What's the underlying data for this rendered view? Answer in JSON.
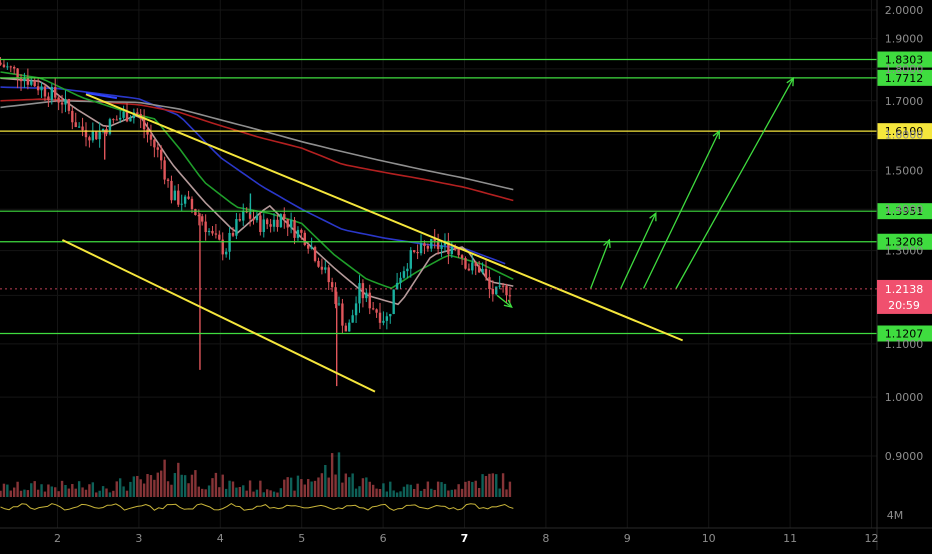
{
  "chart_data": {
    "type": "candlestick",
    "title": "",
    "xlabel": "",
    "ylabel": "",
    "x_ticks": [
      "2",
      "3",
      "4",
      "5",
      "6",
      "7",
      "8",
      "9",
      "10",
      "11",
      "12"
    ],
    "x_range": [
      1.29,
      12.1
    ],
    "y_scale": "log",
    "ylim": [
      0.865,
      2.045
    ],
    "y_ticks": [
      "2.0000",
      "1.9000",
      "1.8000",
      "1.7000",
      "1.6000",
      "1.5000",
      "1.4000",
      "1.3000",
      "1.2000",
      "1.1000",
      "1.0000",
      "0.9000"
    ],
    "y_tick_values": [
      2.0,
      1.9,
      1.8,
      1.7,
      1.6,
      1.5,
      1.4,
      1.3,
      1.2,
      1.1,
      1.0,
      0.9
    ],
    "levels": [
      {
        "label": "1.8303",
        "value": 1.8303,
        "color": "#3fdc3f"
      },
      {
        "label": "1.7712",
        "value": 1.7712,
        "color": "#3fdc3f"
      },
      {
        "label": "1.6100",
        "value": 1.61,
        "color": "#f5e63c"
      },
      {
        "label": "1.3951",
        "value": 1.3951,
        "color": "#3fdc3f"
      },
      {
        "label": "1.3208",
        "value": 1.3208,
        "color": "#3fdc3f"
      },
      {
        "label": "1.1207",
        "value": 1.1207,
        "color": "#3fdc3f"
      }
    ],
    "current_price": {
      "label": "1.2138",
      "value": 1.2138,
      "countdown": "20:59",
      "color": "#f0506e"
    },
    "volume_axis_label": "4M",
    "trendlines": [
      {
        "from": [
          2.35,
          1.72
        ],
        "to": [
          9.68,
          1.107
        ],
        "color": "#f5e63c"
      },
      {
        "from": [
          2.06,
          1.325
        ],
        "to": [
          5.9,
          1.01
        ],
        "color": "#f5e63c"
      },
      {
        "from": [
          2.35,
          1.724
        ],
        "to": [
          2.73,
          1.708
        ],
        "color": "#2f44ff"
      }
    ],
    "arrows": [
      {
        "from": [
          7.4,
          1.2
        ],
        "to": [
          7.58,
          1.175
        ]
      },
      {
        "from": [
          8.55,
          1.215
        ],
        "to": [
          8.78,
          1.325
        ]
      },
      {
        "from": [
          8.92,
          1.215
        ],
        "to": [
          9.35,
          1.39
        ]
      },
      {
        "from": [
          9.2,
          1.215
        ],
        "to": [
          10.13,
          1.61
        ]
      },
      {
        "from": [
          9.6,
          1.215
        ],
        "to": [
          11.04,
          1.77
        ]
      }
    ],
    "moving_averages": [
      {
        "color": "#2a37c9",
        "points": [
          [
            1.3,
            1.742
          ],
          [
            2.0,
            1.738
          ],
          [
            2.5,
            1.722
          ],
          [
            3.0,
            1.706
          ],
          [
            3.5,
            1.655
          ],
          [
            4.0,
            1.536
          ],
          [
            4.5,
            1.46
          ],
          [
            5.0,
            1.4
          ],
          [
            5.5,
            1.35
          ],
          [
            6.0,
            1.33
          ],
          [
            6.5,
            1.315
          ],
          [
            7.0,
            1.305
          ],
          [
            7.5,
            1.27
          ]
        ]
      },
      {
        "color": "#b32020",
        "points": [
          [
            1.3,
            1.7
          ],
          [
            1.8,
            1.705
          ],
          [
            2.3,
            1.7
          ],
          [
            3.0,
            1.688
          ],
          [
            3.5,
            1.665
          ],
          [
            4.0,
            1.626
          ],
          [
            4.5,
            1.591
          ],
          [
            5.0,
            1.562
          ],
          [
            5.5,
            1.517
          ],
          [
            6.0,
            1.496
          ],
          [
            6.5,
            1.477
          ],
          [
            7.0,
            1.456
          ],
          [
            7.6,
            1.422
          ]
        ]
      },
      {
        "color": "#8f8f8f",
        "points": [
          [
            1.3,
            1.68
          ],
          [
            2.0,
            1.7
          ],
          [
            3.0,
            1.695
          ],
          [
            3.5,
            1.675
          ],
          [
            4.0,
            1.643
          ],
          [
            4.5,
            1.612
          ],
          [
            5.0,
            1.58
          ],
          [
            5.5,
            1.552
          ],
          [
            6.0,
            1.526
          ],
          [
            6.5,
            1.502
          ],
          [
            7.0,
            1.48
          ],
          [
            7.6,
            1.45
          ]
        ]
      },
      {
        "color": "#1f9e2a",
        "points": [
          [
            1.3,
            1.79
          ],
          [
            1.8,
            1.77
          ],
          [
            2.3,
            1.71
          ],
          [
            2.8,
            1.67
          ],
          [
            3.2,
            1.645
          ],
          [
            3.5,
            1.56
          ],
          [
            3.8,
            1.47
          ],
          [
            4.2,
            1.405
          ],
          [
            4.6,
            1.39
          ],
          [
            5.0,
            1.365
          ],
          [
            5.4,
            1.29
          ],
          [
            5.8,
            1.235
          ],
          [
            6.1,
            1.215
          ],
          [
            6.4,
            1.25
          ],
          [
            6.8,
            1.29
          ],
          [
            7.2,
            1.27
          ],
          [
            7.6,
            1.235
          ]
        ]
      },
      {
        "color": "#b59a9a",
        "points": [
          [
            1.3,
            1.77
          ],
          [
            1.8,
            1.76
          ],
          [
            2.2,
            1.68
          ],
          [
            2.6,
            1.62
          ],
          [
            3.0,
            1.66
          ],
          [
            3.4,
            1.52
          ],
          [
            3.8,
            1.42
          ],
          [
            4.2,
            1.34
          ],
          [
            4.6,
            1.41
          ],
          [
            5.0,
            1.33
          ],
          [
            5.4,
            1.26
          ],
          [
            5.8,
            1.2
          ],
          [
            6.2,
            1.18
          ],
          [
            6.6,
            1.29
          ],
          [
            7.0,
            1.31
          ],
          [
            7.3,
            1.23
          ],
          [
            7.6,
            1.22
          ]
        ]
      }
    ],
    "price_path": [
      [
        1.3,
        1.82
      ],
      [
        1.6,
        1.78
      ],
      [
        1.9,
        1.73
      ],
      [
        2.1,
        1.7
      ],
      [
        2.3,
        1.62
      ],
      [
        2.5,
        1.6
      ],
      [
        2.8,
        1.65
      ],
      [
        3.0,
        1.67
      ],
      [
        3.1,
        1.62
      ],
      [
        3.3,
        1.54
      ],
      [
        3.45,
        1.43
      ],
      [
        3.6,
        1.42
      ],
      [
        3.8,
        1.38
      ],
      [
        3.95,
        1.33
      ],
      [
        4.1,
        1.3
      ],
      [
        4.2,
        1.345
      ],
      [
        4.35,
        1.39
      ],
      [
        4.55,
        1.36
      ],
      [
        4.7,
        1.37
      ],
      [
        4.8,
        1.385
      ],
      [
        4.95,
        1.35
      ],
      [
        5.1,
        1.33
      ],
      [
        5.3,
        1.26
      ],
      [
        5.45,
        1.2
      ],
      [
        5.6,
        1.12
      ],
      [
        5.75,
        1.21
      ],
      [
        6.0,
        1.16
      ],
      [
        6.1,
        1.15
      ],
      [
        6.2,
        1.23
      ],
      [
        6.35,
        1.28
      ],
      [
        6.6,
        1.31
      ],
      [
        6.85,
        1.31
      ],
      [
        6.95,
        1.31
      ],
      [
        7.1,
        1.26
      ],
      [
        7.25,
        1.26
      ],
      [
        7.35,
        1.21
      ],
      [
        7.45,
        1.2
      ],
      [
        7.55,
        1.215
      ],
      [
        7.6,
        1.2138
      ]
    ],
    "candle_spikes": [
      [
        2.58,
        1.53
      ],
      [
        5.43,
        1.02
      ],
      [
        3.75,
        1.05
      ],
      [
        4.37,
        1.44
      ]
    ],
    "volume_profile": [
      [
        1.3,
        1.0
      ],
      [
        1.8,
        1.2
      ],
      [
        2.3,
        1.1
      ],
      [
        2.7,
        1.3
      ],
      [
        3.2,
        1.8
      ],
      [
        3.4,
        3.2
      ],
      [
        3.8,
        2.0
      ],
      [
        4.2,
        1.3
      ],
      [
        4.6,
        1.1
      ],
      [
        5.0,
        1.6
      ],
      [
        5.3,
        2.8
      ],
      [
        5.45,
        4.0
      ],
      [
        5.6,
        2.0
      ],
      [
        6.0,
        1.2
      ],
      [
        6.5,
        1.1
      ],
      [
        7.0,
        1.5
      ],
      [
        7.4,
        2.2
      ],
      [
        7.6,
        1.0
      ]
    ]
  }
}
